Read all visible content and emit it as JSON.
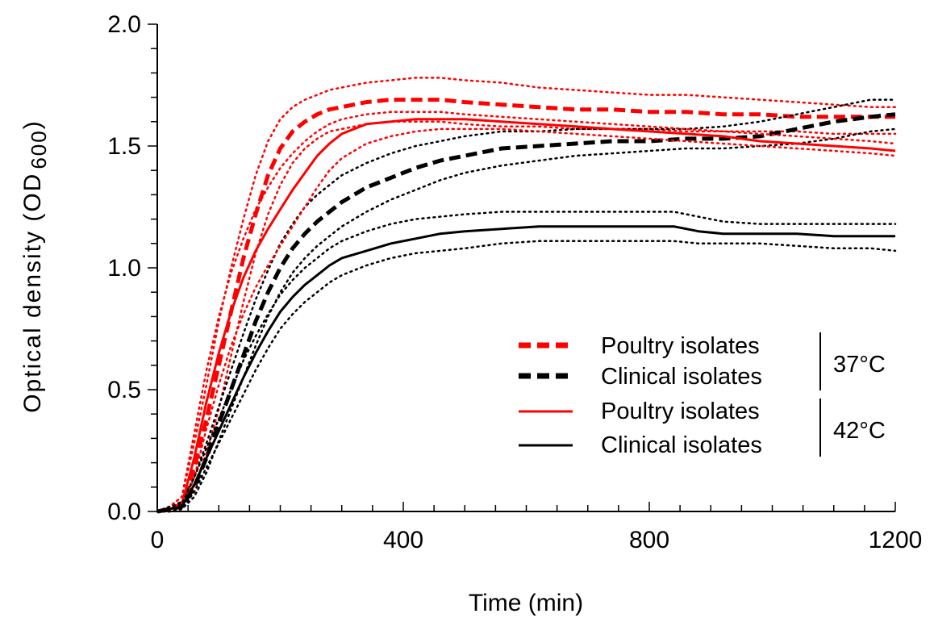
{
  "chart_data": {
    "type": "line",
    "xlabel": "Time (min)",
    "ylabel_main": "Optical density (OD",
    "ylabel_sub": "600",
    "ylabel_close": ")",
    "xlim": [
      0,
      1200
    ],
    "ylim": [
      0,
      2.0
    ],
    "x_ticks": [
      0,
      400,
      800,
      1200
    ],
    "x_tick_labels": [
      "0",
      "400",
      "800",
      "1200"
    ],
    "y_ticks": [
      0.0,
      0.5,
      1.0,
      1.5,
      2.0
    ],
    "y_tick_labels": [
      "0.0",
      "0.5",
      "1.0",
      "1.5",
      "2.0"
    ],
    "grid": false,
    "legend_position": "bottom-right",
    "legend_groups": [
      {
        "label": "37°C",
        "entries": [
          0,
          1
        ]
      },
      {
        "label": "42°C",
        "entries": [
          2,
          3
        ]
      }
    ],
    "series": [
      {
        "name": "Poultry isolates",
        "temperature": "37°C",
        "color": "#ff0000",
        "style": "dashed",
        "x": [
          0,
          20,
          40,
          60,
          80,
          100,
          120,
          140,
          160,
          180,
          200,
          220,
          240,
          260,
          280,
          300,
          340,
          380,
          420,
          460,
          500,
          560,
          620,
          680,
          740,
          800,
          860,
          920,
          980,
          1040,
          1100,
          1160,
          1200
        ],
        "y": [
          0.0,
          0.01,
          0.03,
          0.18,
          0.38,
          0.6,
          0.82,
          1.04,
          1.22,
          1.38,
          1.49,
          1.56,
          1.6,
          1.63,
          1.65,
          1.66,
          1.68,
          1.69,
          1.69,
          1.69,
          1.68,
          1.67,
          1.66,
          1.65,
          1.65,
          1.64,
          1.64,
          1.63,
          1.63,
          1.62,
          1.62,
          1.62,
          1.62
        ],
        "upper": [
          0.0,
          0.02,
          0.06,
          0.28,
          0.52,
          0.78,
          1.0,
          1.2,
          1.38,
          1.52,
          1.61,
          1.66,
          1.69,
          1.71,
          1.73,
          1.74,
          1.76,
          1.77,
          1.78,
          1.78,
          1.77,
          1.76,
          1.74,
          1.73,
          1.72,
          1.71,
          1.71,
          1.7,
          1.69,
          1.68,
          1.67,
          1.66,
          1.66
        ],
        "lower": [
          0.0,
          0.0,
          0.01,
          0.1,
          0.24,
          0.42,
          0.64,
          0.86,
          1.06,
          1.22,
          1.34,
          1.43,
          1.49,
          1.53,
          1.56,
          1.57,
          1.59,
          1.6,
          1.6,
          1.6,
          1.59,
          1.58,
          1.58,
          1.57,
          1.57,
          1.57,
          1.56,
          1.56,
          1.56,
          1.56,
          1.55,
          1.55,
          1.55
        ]
      },
      {
        "name": "Clinical isolates",
        "temperature": "37°C",
        "color": "#000000",
        "style": "dashed",
        "x": [
          0,
          20,
          40,
          60,
          80,
          100,
          120,
          140,
          160,
          180,
          200,
          220,
          240,
          260,
          280,
          300,
          340,
          380,
          420,
          460,
          500,
          560,
          620,
          680,
          740,
          800,
          860,
          920,
          980,
          1040,
          1100,
          1160,
          1200
        ],
        "y": [
          0.0,
          0.01,
          0.02,
          0.1,
          0.22,
          0.36,
          0.5,
          0.64,
          0.78,
          0.9,
          1.0,
          1.08,
          1.14,
          1.19,
          1.23,
          1.27,
          1.33,
          1.37,
          1.41,
          1.44,
          1.46,
          1.49,
          1.5,
          1.51,
          1.52,
          1.52,
          1.53,
          1.53,
          1.54,
          1.57,
          1.6,
          1.62,
          1.63
        ],
        "upper": [
          0.0,
          0.02,
          0.04,
          0.14,
          0.28,
          0.43,
          0.58,
          0.73,
          0.87,
          0.99,
          1.1,
          1.18,
          1.25,
          1.3,
          1.34,
          1.38,
          1.43,
          1.47,
          1.5,
          1.52,
          1.54,
          1.56,
          1.56,
          1.57,
          1.57,
          1.57,
          1.57,
          1.58,
          1.6,
          1.63,
          1.66,
          1.69,
          1.69
        ],
        "lower": [
          0.0,
          0.0,
          0.01,
          0.06,
          0.16,
          0.29,
          0.42,
          0.55,
          0.68,
          0.8,
          0.9,
          0.98,
          1.04,
          1.09,
          1.13,
          1.17,
          1.23,
          1.28,
          1.32,
          1.36,
          1.39,
          1.42,
          1.44,
          1.46,
          1.47,
          1.48,
          1.49,
          1.49,
          1.5,
          1.51,
          1.53,
          1.56,
          1.57
        ]
      },
      {
        "name": "Poultry isolates",
        "temperature": "42°C",
        "color": "#ff0000",
        "style": "solid",
        "x": [
          0,
          20,
          40,
          60,
          80,
          100,
          120,
          140,
          160,
          180,
          200,
          220,
          240,
          260,
          280,
          300,
          340,
          380,
          420,
          460,
          500,
          560,
          620,
          680,
          740,
          800,
          860,
          920,
          980,
          1040,
          1100,
          1160,
          1200
        ],
        "y": [
          0.0,
          0.01,
          0.03,
          0.22,
          0.45,
          0.65,
          0.82,
          0.96,
          1.07,
          1.16,
          1.24,
          1.32,
          1.39,
          1.46,
          1.51,
          1.55,
          1.59,
          1.6,
          1.61,
          1.61,
          1.61,
          1.6,
          1.59,
          1.58,
          1.57,
          1.56,
          1.55,
          1.54,
          1.52,
          1.51,
          1.5,
          1.49,
          1.48
        ],
        "upper": [
          0.0,
          0.02,
          0.06,
          0.32,
          0.58,
          0.8,
          0.98,
          1.12,
          1.24,
          1.33,
          1.41,
          1.47,
          1.52,
          1.56,
          1.59,
          1.61,
          1.63,
          1.64,
          1.64,
          1.64,
          1.63,
          1.62,
          1.61,
          1.6,
          1.59,
          1.58,
          1.57,
          1.56,
          1.55,
          1.54,
          1.53,
          1.52,
          1.51
        ],
        "lower": [
          0.0,
          0.0,
          0.01,
          0.14,
          0.34,
          0.52,
          0.68,
          0.81,
          0.92,
          1.01,
          1.09,
          1.17,
          1.25,
          1.33,
          1.4,
          1.45,
          1.51,
          1.54,
          1.56,
          1.57,
          1.57,
          1.57,
          1.56,
          1.55,
          1.54,
          1.53,
          1.52,
          1.51,
          1.5,
          1.49,
          1.48,
          1.47,
          1.46
        ]
      },
      {
        "name": "Clinical isolates",
        "temperature": "42°C",
        "color": "#000000",
        "style": "solid",
        "x": [
          0,
          20,
          40,
          60,
          80,
          100,
          120,
          140,
          160,
          180,
          200,
          220,
          240,
          260,
          280,
          300,
          340,
          380,
          420,
          460,
          500,
          560,
          620,
          680,
          740,
          800,
          840,
          880,
          920,
          980,
          1040,
          1100,
          1160,
          1200
        ],
        "y": [
          0.0,
          0.01,
          0.02,
          0.11,
          0.22,
          0.33,
          0.44,
          0.55,
          0.65,
          0.74,
          0.82,
          0.88,
          0.93,
          0.97,
          1.01,
          1.04,
          1.07,
          1.1,
          1.12,
          1.14,
          1.15,
          1.16,
          1.17,
          1.17,
          1.17,
          1.17,
          1.17,
          1.15,
          1.14,
          1.14,
          1.14,
          1.13,
          1.13,
          1.13
        ],
        "upper": [
          0.0,
          0.02,
          0.03,
          0.14,
          0.26,
          0.38,
          0.5,
          0.62,
          0.72,
          0.81,
          0.89,
          0.95,
          1.0,
          1.04,
          1.08,
          1.11,
          1.15,
          1.18,
          1.2,
          1.21,
          1.22,
          1.23,
          1.23,
          1.23,
          1.23,
          1.23,
          1.23,
          1.21,
          1.19,
          1.18,
          1.18,
          1.18,
          1.18,
          1.18
        ],
        "lower": [
          0.0,
          0.0,
          0.01,
          0.08,
          0.18,
          0.28,
          0.38,
          0.48,
          0.58,
          0.67,
          0.75,
          0.81,
          0.86,
          0.9,
          0.94,
          0.97,
          1.01,
          1.04,
          1.06,
          1.07,
          1.08,
          1.1,
          1.11,
          1.11,
          1.11,
          1.11,
          1.11,
          1.1,
          1.1,
          1.1,
          1.09,
          1.08,
          1.08,
          1.07
        ]
      }
    ]
  }
}
